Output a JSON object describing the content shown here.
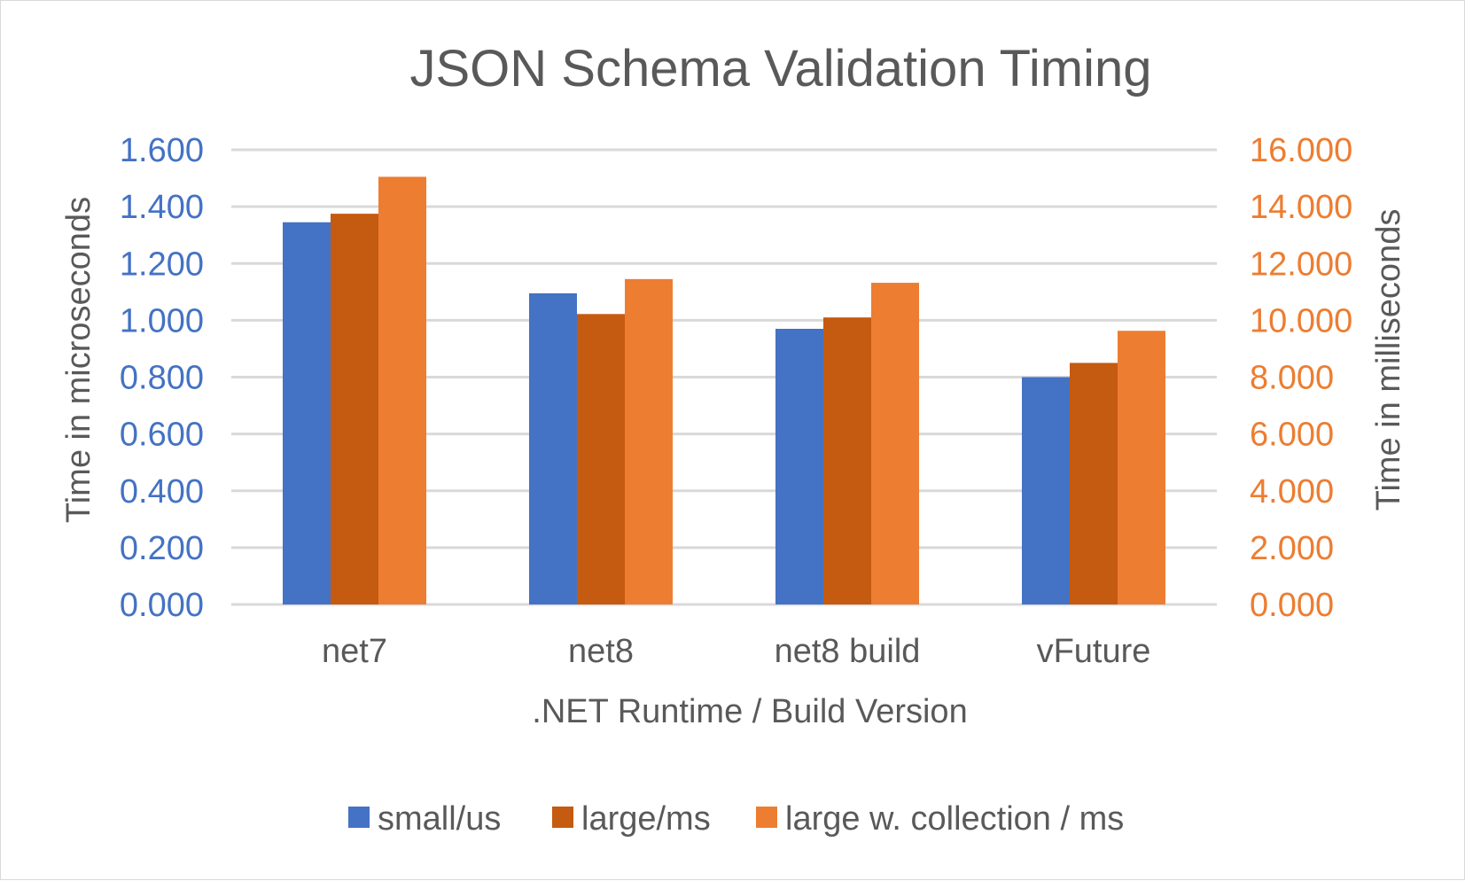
{
  "chart_data": {
    "type": "bar",
    "title": "JSON Schema Validation Timing",
    "xlabel": ".NET Runtime / Build Version",
    "ylabel": "Time in microseconds",
    "y2label": "Time in milliseconds",
    "categories": [
      "net7",
      "net8",
      "net8 build",
      "vFuture"
    ],
    "ylim": [
      0,
      1.6
    ],
    "y2lim": [
      0,
      16
    ],
    "yticks": [
      "0.000",
      "0.200",
      "0.400",
      "0.600",
      "0.800",
      "1.000",
      "1.200",
      "1.400",
      "1.600"
    ],
    "y2ticks": [
      "0.000",
      "2.000",
      "4.000",
      "6.000",
      "8.000",
      "10.000",
      "12.000",
      "14.000",
      "16.000"
    ],
    "grid": true,
    "legend_position": "bottom",
    "series": [
      {
        "name": "small/us",
        "axis": "left",
        "color": "#4472c4",
        "values": [
          1.345,
          1.095,
          0.97,
          0.8
        ]
      },
      {
        "name": "large/ms",
        "axis": "right",
        "color": "#c55a11",
        "values": [
          13.75,
          10.22,
          10.1,
          8.5
        ]
      },
      {
        "name": "large w. collection / ms",
        "axis": "right",
        "color": "#ed7d31",
        "values": [
          15.05,
          11.45,
          11.32,
          9.63
        ]
      }
    ],
    "left_axis_color": "#4472c4",
    "right_axis_color": "#ed7d31"
  }
}
